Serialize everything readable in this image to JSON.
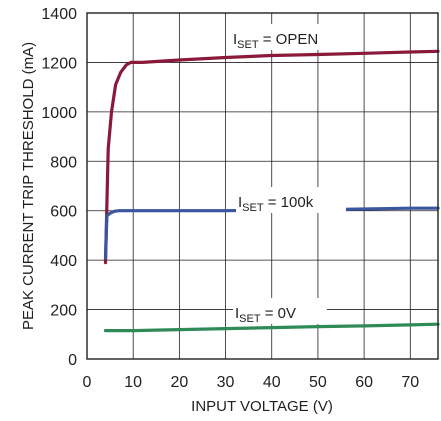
{
  "chart_data": {
    "type": "line",
    "title": "",
    "xlabel": "INPUT VOLTAGE (V)",
    "ylabel": "PEAK CURRENT TRIP THRESHOLD (mA)",
    "xlim": [
      0,
      76
    ],
    "ylim": [
      0,
      1400
    ],
    "x_ticks": [
      "0",
      "10",
      "20",
      "30",
      "40",
      "50",
      "60",
      "70"
    ],
    "y_ticks": [
      "0",
      "200",
      "400",
      "600",
      "800",
      "1000",
      "1200",
      "1400"
    ],
    "grid": true,
    "series": [
      {
        "label_main": "I",
        "label_sub": "SET",
        "label_rest": " = OPEN",
        "color": "#8b1a3a",
        "x": [
          4,
          4.6,
          5.3,
          6.2,
          7.3,
          8.5,
          9.5,
          12,
          20,
          30,
          40,
          50,
          60,
          70,
          76
        ],
        "y": [
          390,
          850,
          1000,
          1110,
          1160,
          1190,
          1200,
          1200,
          1210,
          1220,
          1228,
          1232,
          1237,
          1242,
          1245
        ]
      },
      {
        "label_main": "I",
        "label_sub": "SET",
        "label_rest": " = 100k",
        "color": "#3a56a0",
        "x": [
          4,
          4.3,
          5,
          6,
          7,
          10,
          20,
          30,
          40,
          50,
          60,
          70,
          76
        ],
        "y": [
          410,
          580,
          590,
          598,
          600,
          600,
          600,
          600,
          602,
          604,
          607,
          610,
          610
        ]
      },
      {
        "label_main": "I",
        "label_sub": "SET",
        "label_rest": " = 0V",
        "color": "#2e8b57",
        "x": [
          4,
          10,
          20,
          30,
          40,
          50,
          60,
          70,
          76
        ],
        "y": [
          115,
          115,
          119,
          123,
          127,
          131,
          134,
          138,
          141
        ]
      }
    ]
  }
}
